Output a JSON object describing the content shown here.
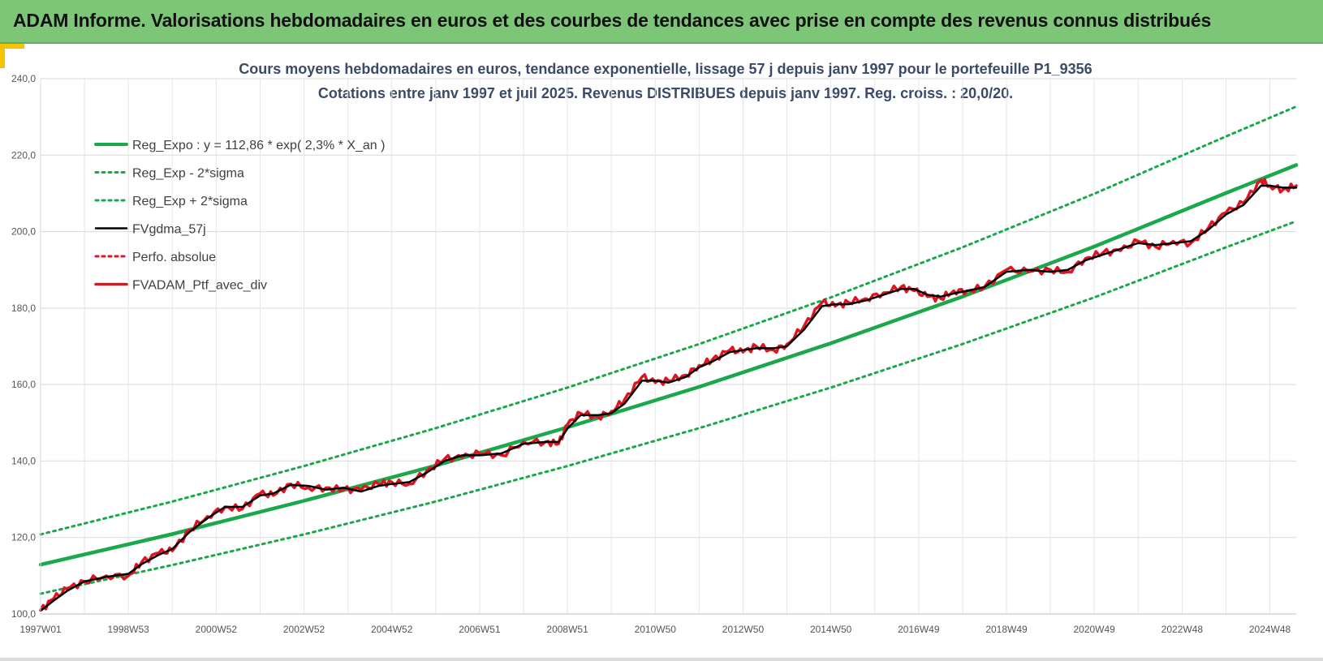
{
  "header": {
    "banner_title": "ADAM Informe. Valorisations hebdomadaires en euros et des courbes de tendances avec prise en compte des revenus connus distribués"
  },
  "chart_data": {
    "type": "line",
    "title": "Cours moyens hebdomadaires  en euros, tendance exponentielle, lissage 57 j depuis janv 1997 pour le portefeuille P1_9356",
    "subtitle": "Cotations entre janv 1997 et juil 2025. Revenus DISTRIBUES depuis janv 1997. Reg. croiss. : 20,0/20.",
    "xlabel": "",
    "ylabel": "",
    "ylim": [
      100,
      240
    ],
    "xlim": [
      1997.0,
      2025.6
    ],
    "yticks": [
      "100,0",
      "120,0",
      "140,0",
      "160,0",
      "180,0",
      "200,0",
      "220,0",
      "240,0"
    ],
    "xticks": [
      {
        "label": "1997W01",
        "x": 1997.0
      },
      {
        "label": "1998W53",
        "x": 1999.0
      },
      {
        "label": "2000W52",
        "x": 2001.0
      },
      {
        "label": "2002W52",
        "x": 2003.0
      },
      {
        "label": "2004W52",
        "x": 2005.0
      },
      {
        "label": "2006W51",
        "x": 2007.0
      },
      {
        "label": "2008W51",
        "x": 2009.0
      },
      {
        "label": "2010W50",
        "x": 2011.0
      },
      {
        "label": "2012W50",
        "x": 2013.0
      },
      {
        "label": "2014W50",
        "x": 2015.0
      },
      {
        "label": "2016W49",
        "x": 2017.0
      },
      {
        "label": "2018W49",
        "x": 2019.0
      },
      {
        "label": "2020W49",
        "x": 2021.0
      },
      {
        "label": "2022W48",
        "x": 2023.0
      },
      {
        "label": "2024W48",
        "x": 2025.0
      }
    ],
    "grid": true,
    "legend_position": "top-left",
    "series": [
      {
        "name": "Reg_Expo : y = 112,86 * exp( 2,3% *  X_an )",
        "color": "#1aa84a",
        "style": "solid-thick",
        "x": [
          1997.0,
          2000.0,
          2003.0,
          2006.0,
          2009.0,
          2012.0,
          2015.0,
          2018.0,
          2021.0,
          2024.0,
          2025.6
        ],
        "values": [
          112.9,
          120.9,
          129.6,
          138.8,
          148.8,
          159.4,
          170.8,
          183.0,
          196.1,
          210.1,
          217.4
        ]
      },
      {
        "name": "Reg_Exp - 2*sigma",
        "color": "#1aa84a",
        "style": "dotted",
        "x": [
          1997.0,
          2000.0,
          2003.0,
          2006.0,
          2009.0,
          2012.0,
          2015.0,
          2018.0,
          2021.0,
          2024.0,
          2025.6
        ],
        "values": [
          105.3,
          112.8,
          120.8,
          129.4,
          138.7,
          148.6,
          159.2,
          170.6,
          182.8,
          195.9,
          202.7
        ]
      },
      {
        "name": "Reg_Exp + 2*sigma",
        "color": "#1aa84a",
        "style": "dotted",
        "x": [
          1997.0,
          2000.0,
          2003.0,
          2006.0,
          2009.0,
          2012.0,
          2015.0,
          2018.0,
          2021.0,
          2024.0,
          2025.6
        ],
        "values": [
          120.8,
          129.4,
          138.7,
          148.6,
          159.2,
          170.6,
          182.8,
          195.9,
          209.9,
          224.9,
          232.7
        ]
      },
      {
        "name": "FVgdma_57j",
        "color": "#000000",
        "style": "solid",
        "x": [
          1997.0,
          1997.3,
          1997.6,
          1998.0,
          1998.5,
          1999.0,
          1999.3,
          1999.7,
          2000.0,
          2000.4,
          2000.8,
          2001.2,
          2001.6,
          2002.0,
          2002.3,
          2002.7,
          2003.1,
          2003.5,
          2003.9,
          2004.3,
          2004.7,
          2005.0,
          2005.4,
          2005.8,
          2006.2,
          2006.6,
          2007.0,
          2007.5,
          2008.0,
          2008.5,
          2008.8,
          2009.0,
          2009.3,
          2009.7,
          2010.0,
          2010.3,
          2010.7,
          2011.0,
          2011.3,
          2011.7,
          2012.0,
          2012.3,
          2012.7,
          2013.0,
          2013.3,
          2013.7,
          2014.0,
          2014.4,
          2014.8,
          2015.1,
          2015.4,
          2015.8,
          2016.2,
          2016.6,
          2016.9,
          2017.2,
          2017.5,
          2017.8,
          2018.1,
          2018.5,
          2019.0,
          2019.5,
          2020.0,
          2020.4,
          2020.8,
          2021.2,
          2021.6,
          2022.0,
          2022.4,
          2022.8,
          2023.2,
          2023.6,
          2024.0,
          2024.4,
          2024.8,
          2025.0,
          2025.3,
          2025.6
        ],
        "values": [
          100.8,
          103.5,
          106.0,
          108.5,
          109.7,
          110.5,
          113.0,
          115.5,
          117.0,
          121.5,
          125.0,
          128.0,
          128.0,
          131.0,
          131.5,
          133.8,
          133.5,
          132.5,
          133.0,
          132.0,
          133.5,
          134.0,
          134.5,
          137.0,
          140.0,
          141.5,
          141.5,
          142.0,
          144.5,
          145.0,
          145.0,
          148.5,
          152.0,
          152.0,
          152.5,
          155.0,
          161.0,
          161.0,
          160.5,
          162.0,
          164.5,
          166.0,
          168.5,
          169.0,
          169.5,
          169.5,
          170.0,
          174.5,
          180.5,
          181.0,
          181.0,
          182.0,
          183.5,
          185.0,
          185.0,
          183.5,
          183.0,
          183.8,
          184.5,
          185.5,
          189.5,
          190.0,
          189.5,
          190.0,
          192.5,
          194.0,
          195.5,
          197.0,
          196.5,
          197.0,
          197.5,
          200.5,
          204.5,
          207.0,
          212.0,
          212.0,
          211.5,
          211.5
        ]
      },
      {
        "name": "Perfo. absolue",
        "color": "#e0141e",
        "style": "dotted",
        "x": [],
        "values": []
      },
      {
        "name": "FVADAM_Ptf_avec_div",
        "color": "#e0141e",
        "style": "solid-thick-noisy",
        "x": [
          1997.0,
          1997.3,
          1997.6,
          1998.0,
          1998.5,
          1999.0,
          1999.3,
          1999.7,
          2000.0,
          2000.4,
          2000.8,
          2001.2,
          2001.6,
          2002.0,
          2002.3,
          2002.7,
          2003.1,
          2003.5,
          2003.9,
          2004.3,
          2004.7,
          2005.0,
          2005.4,
          2005.8,
          2006.2,
          2006.6,
          2007.0,
          2007.5,
          2008.0,
          2008.5,
          2008.8,
          2009.0,
          2009.3,
          2009.7,
          2010.0,
          2010.3,
          2010.7,
          2011.0,
          2011.3,
          2011.7,
          2012.0,
          2012.3,
          2012.7,
          2013.0,
          2013.3,
          2013.7,
          2014.0,
          2014.4,
          2014.8,
          2015.1,
          2015.4,
          2015.8,
          2016.2,
          2016.6,
          2016.9,
          2017.2,
          2017.5,
          2017.8,
          2018.1,
          2018.5,
          2019.0,
          2019.5,
          2020.0,
          2020.4,
          2020.8,
          2021.2,
          2021.6,
          2022.0,
          2022.4,
          2022.8,
          2023.2,
          2023.6,
          2024.0,
          2024.4,
          2024.8,
          2025.0,
          2025.3,
          2025.6
        ],
        "values": [
          101.0,
          104.0,
          106.5,
          108.5,
          110.0,
          110.0,
          113.5,
          116.0,
          116.5,
          122.0,
          125.5,
          128.0,
          127.5,
          131.5,
          131.0,
          134.0,
          133.0,
          133.0,
          132.5,
          132.5,
          134.0,
          134.5,
          134.0,
          137.5,
          140.5,
          141.0,
          142.0,
          141.5,
          145.0,
          145.0,
          144.5,
          149.5,
          152.5,
          151.5,
          153.0,
          156.0,
          162.0,
          160.5,
          161.0,
          162.5,
          165.0,
          166.5,
          169.0,
          168.5,
          170.0,
          169.0,
          170.5,
          175.5,
          181.5,
          180.5,
          181.5,
          182.5,
          184.0,
          185.5,
          184.5,
          183.0,
          182.5,
          184.5,
          184.5,
          185.5,
          190.0,
          189.5,
          190.0,
          189.5,
          193.0,
          194.5,
          195.0,
          197.5,
          196.0,
          197.5,
          197.0,
          201.0,
          205.0,
          207.5,
          213.5,
          212.0,
          211.0,
          212.0
        ]
      }
    ]
  }
}
